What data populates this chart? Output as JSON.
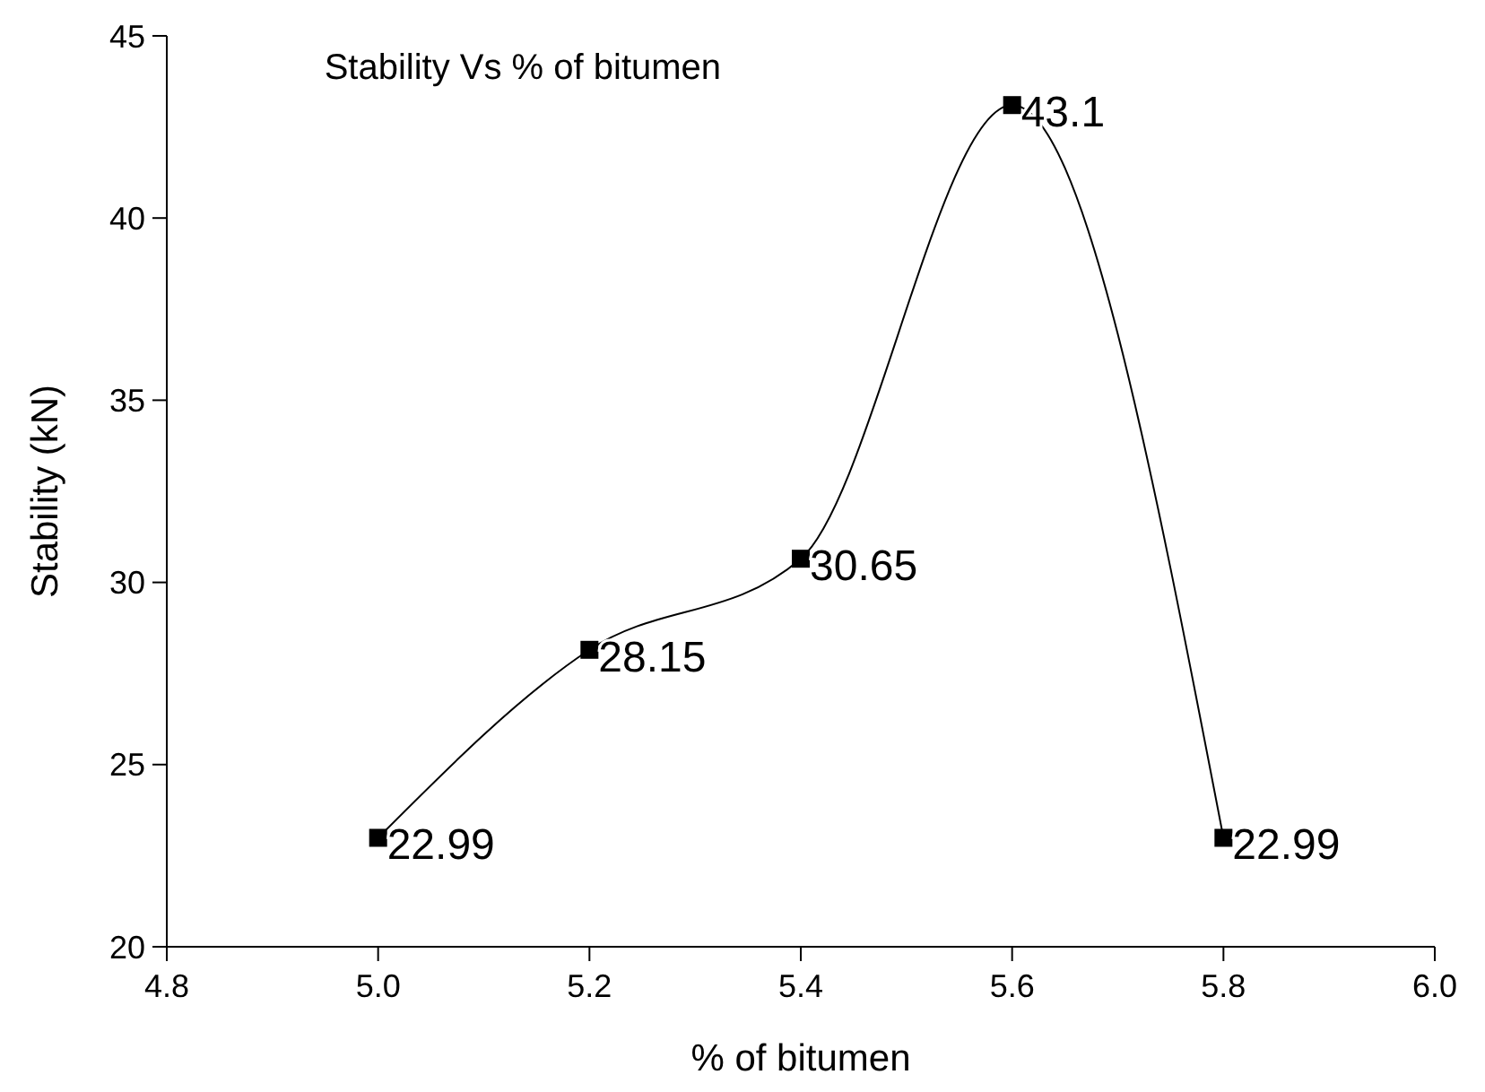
{
  "chart_data": {
    "type": "line",
    "title": "Stability Vs % of bitumen",
    "xlabel": "% of bitumen",
    "ylabel": "Stability (kN)",
    "x": [
      5.0,
      5.2,
      5.4,
      5.6,
      5.8
    ],
    "series": [
      {
        "color": "#000000",
        "values": [
          22.99,
          28.15,
          30.65,
          43.1,
          22.99
        ]
      }
    ],
    "xlim": [
      4.8,
      6.0
    ],
    "xticks": [
      {
        "value": 4.8,
        "label": "4.8"
      },
      {
        "value": 5.0,
        "label": "5.0"
      },
      {
        "value": 5.2,
        "label": "5.2"
      },
      {
        "value": 5.4,
        "label": "5.4"
      },
      {
        "value": 5.6,
        "label": "5.6"
      },
      {
        "value": 5.8,
        "label": "5.8"
      },
      {
        "value": 6.0,
        "label": "6.0"
      }
    ],
    "ylim": [
      20,
      45
    ],
    "yticks": [
      20,
      25,
      30,
      35,
      40,
      45
    ],
    "marker": "square",
    "line_style": "solid",
    "data_labels": true,
    "grid": false
  }
}
